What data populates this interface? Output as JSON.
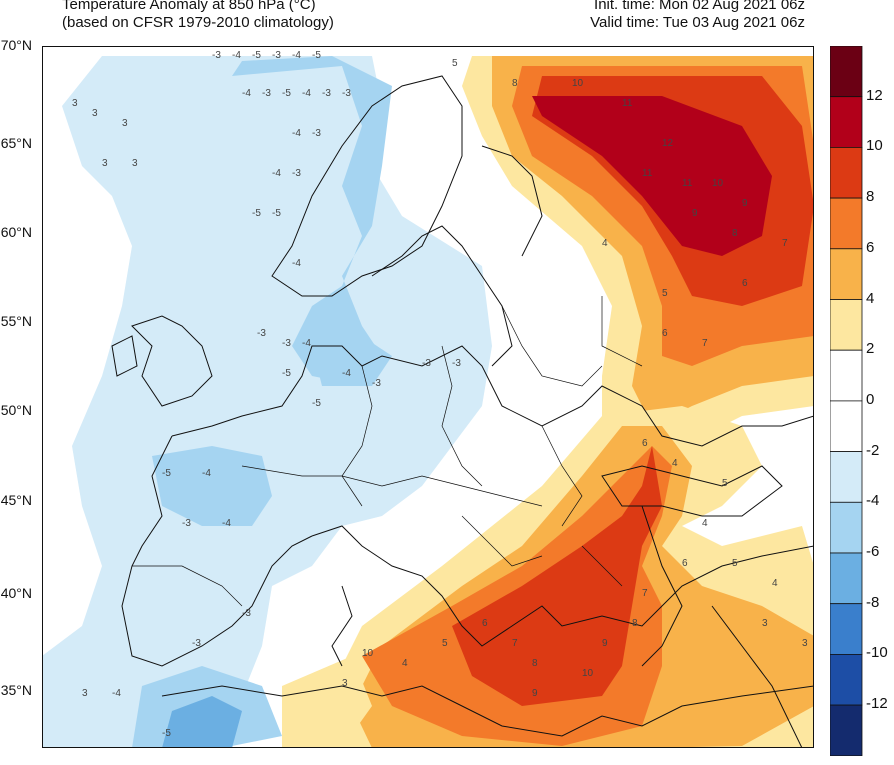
{
  "header": {
    "title": "Temperature Anomaly at 850 hPa (°C)",
    "subtitle": "(based on CFSR 1979-2010 climatology)",
    "init_time": "Init. time: Mon 02 Aug 2021 06z",
    "valid_time": "Valid time: Tue 03 Aug 2021 06z"
  },
  "lat_labels": [
    "70°N",
    "65°N",
    "60°N",
    "55°N",
    "50°N",
    "45°N",
    "40°N",
    "35°N"
  ],
  "colorbar": {
    "labels": [
      "12",
      "10",
      "8",
      "6",
      "4",
      "2",
      "0",
      "-2",
      "-4",
      "-6",
      "-8",
      "-10",
      "-12"
    ],
    "colors": [
      "#6b0014",
      "#b2001a",
      "#dc3a14",
      "#f37a2a",
      "#f8b24a",
      "#fde7a0",
      "#ffffff",
      "#ffffff",
      "#d4ebf8",
      "#a5d4f1",
      "#6bafe2",
      "#3a7fcc",
      "#1d4ea6",
      "#142b6e"
    ]
  },
  "contour_labels": [
    {
      "t": "-3"
    },
    {
      "t": "-4"
    },
    {
      "t": "-5"
    },
    {
      "t": "-3"
    },
    {
      "t": "-4"
    },
    {
      "t": "-5"
    },
    {
      "t": "-4"
    },
    {
      "t": "-3"
    },
    {
      "t": "-5"
    },
    {
      "t": "-4"
    },
    {
      "t": "-3"
    },
    {
      "t": "-3"
    },
    {
      "t": "-4"
    },
    {
      "t": "-3"
    },
    {
      "t": "-4"
    },
    {
      "t": "-3"
    },
    {
      "t": "-5"
    },
    {
      "t": "-5"
    },
    {
      "t": "-4"
    },
    {
      "t": "-3"
    },
    {
      "t": "-3"
    },
    {
      "t": "-4"
    },
    {
      "t": "-5"
    },
    {
      "t": "-5"
    },
    {
      "t": "-4"
    },
    {
      "t": "-3"
    },
    {
      "t": "-3"
    },
    {
      "t": "-3"
    },
    {
      "t": "-5"
    },
    {
      "t": "-4"
    },
    {
      "t": "-4"
    },
    {
      "t": "-3"
    },
    {
      "t": "-3"
    },
    {
      "t": "-3"
    },
    {
      "t": "-4"
    },
    {
      "t": "-5"
    },
    {
      "t": "3"
    },
    {
      "t": "3"
    },
    {
      "t": "3"
    },
    {
      "t": "3"
    },
    {
      "t": "3"
    },
    {
      "t": "3"
    },
    {
      "t": "3"
    },
    {
      "t": "5"
    },
    {
      "t": "8"
    },
    {
      "t": "10"
    },
    {
      "t": "11"
    },
    {
      "t": "12"
    },
    {
      "t": "11"
    },
    {
      "t": "10"
    },
    {
      "t": "9"
    },
    {
      "t": "7"
    },
    {
      "t": "6"
    },
    {
      "t": "5"
    },
    {
      "t": "4"
    },
    {
      "t": "6"
    },
    {
      "t": "7"
    },
    {
      "t": "8"
    },
    {
      "t": "9"
    },
    {
      "t": "11"
    },
    {
      "t": "10"
    },
    {
      "t": "4"
    },
    {
      "t": "5"
    },
    {
      "t": "6"
    },
    {
      "t": "7"
    },
    {
      "t": "8"
    },
    {
      "t": "9"
    },
    {
      "t": "10"
    },
    {
      "t": "9"
    },
    {
      "t": "8"
    },
    {
      "t": "7"
    },
    {
      "t": "6"
    },
    {
      "t": "5"
    },
    {
      "t": "4"
    },
    {
      "t": "3"
    },
    {
      "t": "3"
    },
    {
      "t": "4"
    },
    {
      "t": "5"
    },
    {
      "t": "4"
    },
    {
      "t": "6"
    },
    {
      "t": "7"
    }
  ]
}
